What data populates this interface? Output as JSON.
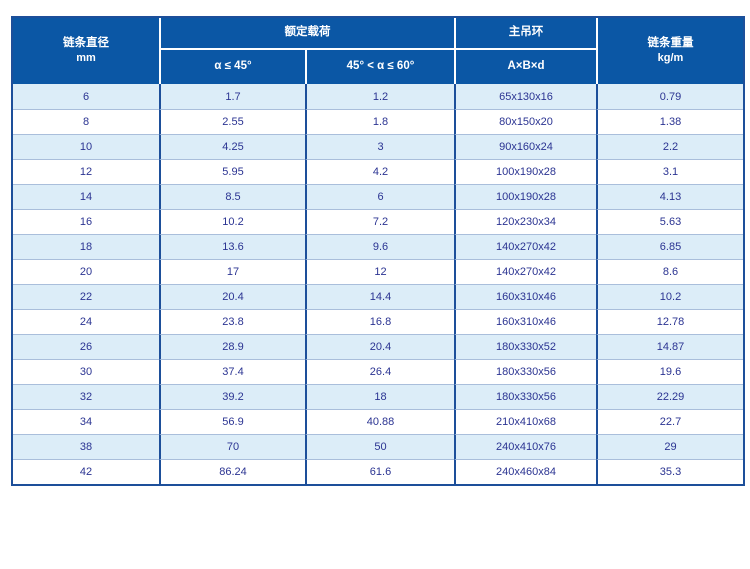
{
  "table": {
    "header": {
      "diameter_title": "链条直径",
      "diameter_unit": "mm",
      "rated_load": "额定载荷",
      "load_sub_le45": "α ≤ 45°",
      "load_sub_45to60": "45° < α ≤ 60°",
      "main_ring": "主吊环",
      "main_ring_sub": "A×B×d",
      "weight_title": "链条重量",
      "weight_unit": "kg/m"
    },
    "rows": [
      [
        "6",
        "1.7",
        "1.2",
        "65x130x16",
        "0.79"
      ],
      [
        "8",
        "2.55",
        "1.8",
        "80x150x20",
        "1.38"
      ],
      [
        "10",
        "4.25",
        "3",
        "90x160x24",
        "2.2"
      ],
      [
        "12",
        "5.95",
        "4.2",
        "100x190x28",
        "3.1"
      ],
      [
        "14",
        "8.5",
        "6",
        "100x190x28",
        "4.13"
      ],
      [
        "16",
        "10.2",
        "7.2",
        "120x230x34",
        "5.63"
      ],
      [
        "18",
        "13.6",
        "9.6",
        "140x270x42",
        "6.85"
      ],
      [
        "20",
        "17",
        "12",
        "140x270x42",
        "8.6"
      ],
      [
        "22",
        "20.4",
        "14.4",
        "160x310x46",
        "10.2"
      ],
      [
        "24",
        "23.8",
        "16.8",
        "160x310x46",
        "12.78"
      ],
      [
        "26",
        "28.9",
        "20.4",
        "180x330x52",
        "14.87"
      ],
      [
        "30",
        "37.4",
        "26.4",
        "180x330x56",
        "19.6"
      ],
      [
        "32",
        "39.2",
        "18",
        "180x330x56",
        "22.29"
      ],
      [
        "34",
        "56.9",
        "40.88",
        "210x410x68",
        "22.7"
      ],
      [
        "38",
        "70",
        "50",
        "240x410x76",
        "29"
      ],
      [
        "42",
        "86.24",
        "61.6",
        "240x460x84",
        "35.3"
      ]
    ]
  },
  "colors": {
    "header_bg": "#0b57a5",
    "header_text": "#ffffff",
    "row_alt_bg": "#dcedf8",
    "row_bg": "#ffffff",
    "grid_border": "#1d4f9a",
    "row_separator": "#a9bedb",
    "data_text": "#2b3492"
  }
}
